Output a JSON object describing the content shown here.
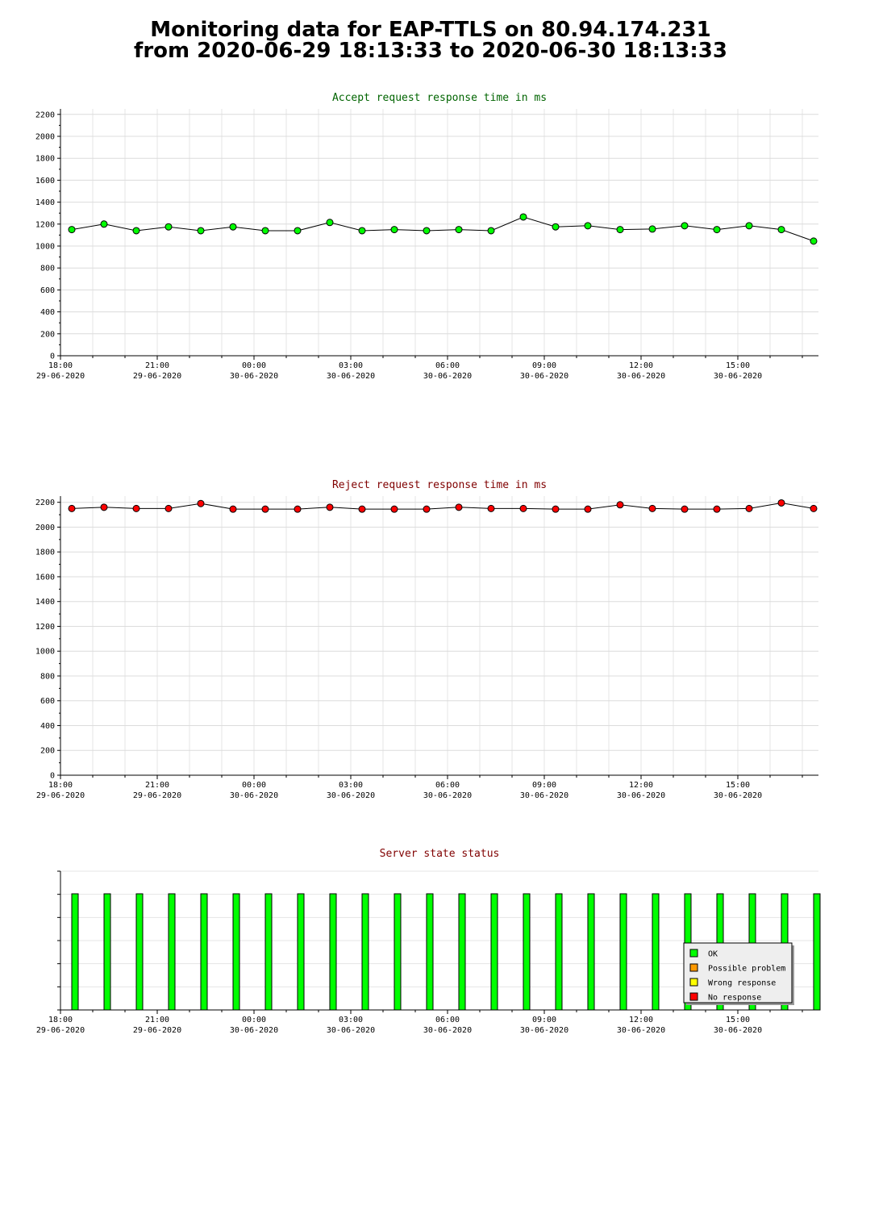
{
  "title": {
    "line1": "Monitoring data for EAP-TTLS on 80.94.174.231",
    "line2": "from 2020-06-29 18:13:33 to 2020-06-30 18:13:33"
  },
  "colors": {
    "accept_series": "#00ff00",
    "reject_series": "#ff0000",
    "accept_title": "#006400",
    "reject_title": "#800000",
    "ok": "#00ff00",
    "possible_problem": "#ff9900",
    "wrong_response": "#ffff00",
    "no_response": "#ff0000"
  },
  "chart_data": [
    {
      "type": "line",
      "title": "Accept request response time in ms",
      "ylim": [
        0,
        2250
      ],
      "yticks": [
        0,
        200,
        400,
        600,
        800,
        1000,
        1200,
        1400,
        1600,
        1800,
        2000,
        2200
      ],
      "x_range_hours": [
        0,
        23.5
      ],
      "x_ticks": [
        {
          "hour": 0,
          "time": "18:00",
          "date": "29-06-2020"
        },
        {
          "hour": 3,
          "time": "21:00",
          "date": "29-06-2020"
        },
        {
          "hour": 6,
          "time": "00:00",
          "date": "30-06-2020"
        },
        {
          "hour": 9,
          "time": "03:00",
          "date": "30-06-2020"
        },
        {
          "hour": 12,
          "time": "06:00",
          "date": "30-06-2020"
        },
        {
          "hour": 15,
          "time": "09:00",
          "date": "30-06-2020"
        },
        {
          "hour": 18,
          "time": "12:00",
          "date": "30-06-2020"
        },
        {
          "hour": 21,
          "time": "15:00",
          "date": "30-06-2020"
        }
      ],
      "grid": true,
      "series": [
        {
          "color": "#00ff00",
          "x": [
            0.35,
            1.35,
            2.35,
            3.35,
            4.35,
            5.35,
            6.35,
            7.35,
            8.35,
            9.35,
            10.35,
            11.35,
            12.35,
            13.35,
            14.35,
            15.35,
            16.35,
            17.35,
            18.35,
            19.35,
            20.35,
            21.35,
            22.35,
            23.35
          ],
          "values": [
            1150,
            1200,
            1140,
            1175,
            1140,
            1175,
            1140,
            1140,
            1215,
            1140,
            1150,
            1140,
            1150,
            1140,
            1265,
            1175,
            1185,
            1150,
            1155,
            1185,
            1150,
            1185,
            1150,
            1045
          ]
        }
      ]
    },
    {
      "type": "line",
      "title": "Reject request response time in ms",
      "ylim": [
        0,
        2250
      ],
      "yticks": [
        0,
        200,
        400,
        600,
        800,
        1000,
        1200,
        1400,
        1600,
        1800,
        2000,
        2200
      ],
      "x_range_hours": [
        0,
        23.5
      ],
      "x_ticks": [
        {
          "hour": 0,
          "time": "18:00",
          "date": "29-06-2020"
        },
        {
          "hour": 3,
          "time": "21:00",
          "date": "29-06-2020"
        },
        {
          "hour": 6,
          "time": "00:00",
          "date": "30-06-2020"
        },
        {
          "hour": 9,
          "time": "03:00",
          "date": "30-06-2020"
        },
        {
          "hour": 12,
          "time": "06:00",
          "date": "30-06-2020"
        },
        {
          "hour": 15,
          "time": "09:00",
          "date": "30-06-2020"
        },
        {
          "hour": 18,
          "time": "12:00",
          "date": "30-06-2020"
        },
        {
          "hour": 21,
          "time": "15:00",
          "date": "30-06-2020"
        }
      ],
      "grid": true,
      "series": [
        {
          "color": "#ff0000",
          "x": [
            0.35,
            1.35,
            2.35,
            3.35,
            4.35,
            5.35,
            6.35,
            7.35,
            8.35,
            9.35,
            10.35,
            11.35,
            12.35,
            13.35,
            14.35,
            15.35,
            16.35,
            17.35,
            18.35,
            19.35,
            20.35,
            21.35,
            22.35,
            23.35
          ],
          "values": [
            2150,
            2160,
            2150,
            2150,
            2190,
            2145,
            2145,
            2145,
            2160,
            2145,
            2145,
            2145,
            2160,
            2150,
            2150,
            2145,
            2145,
            2180,
            2150,
            2145,
            2145,
            2150,
            2195,
            2150
          ]
        }
      ]
    },
    {
      "type": "bar",
      "title": "Server state status",
      "x_range_hours": [
        0,
        23.5
      ],
      "x_ticks": [
        {
          "hour": 0,
          "time": "18:00",
          "date": "29-06-2020"
        },
        {
          "hour": 3,
          "time": "21:00",
          "date": "29-06-2020"
        },
        {
          "hour": 6,
          "time": "00:00",
          "date": "30-06-2020"
        },
        {
          "hour": 9,
          "time": "03:00",
          "date": "30-06-2020"
        },
        {
          "hour": 12,
          "time": "06:00",
          "date": "30-06-2020"
        },
        {
          "hour": 15,
          "time": "09:00",
          "date": "30-06-2020"
        },
        {
          "hour": 18,
          "time": "12:00",
          "date": "30-06-2020"
        },
        {
          "hour": 21,
          "time": "15:00",
          "date": "30-06-2020"
        }
      ],
      "x": [
        0.45,
        1.45,
        2.45,
        3.45,
        4.45,
        5.45,
        6.45,
        7.45,
        8.45,
        9.45,
        10.45,
        11.45,
        12.45,
        13.45,
        14.45,
        15.45,
        16.45,
        17.45,
        18.45,
        19.45,
        20.45,
        21.45,
        22.45,
        23.45
      ],
      "status": [
        "OK",
        "OK",
        "OK",
        "OK",
        "OK",
        "OK",
        "OK",
        "OK",
        "OK",
        "OK",
        "OK",
        "OK",
        "OK",
        "OK",
        "OK",
        "OK",
        "OK",
        "OK",
        "OK",
        "OK",
        "OK",
        "OK",
        "OK",
        "OK"
      ],
      "legend": [
        {
          "label": "OK",
          "color": "#00ff00"
        },
        {
          "label": "Possible problem",
          "color": "#ff9900"
        },
        {
          "label": "Wrong response",
          "color": "#ffff00"
        },
        {
          "label": "No response",
          "color": "#ff0000"
        }
      ],
      "legend_position": "bottom-right",
      "grid": true
    }
  ]
}
